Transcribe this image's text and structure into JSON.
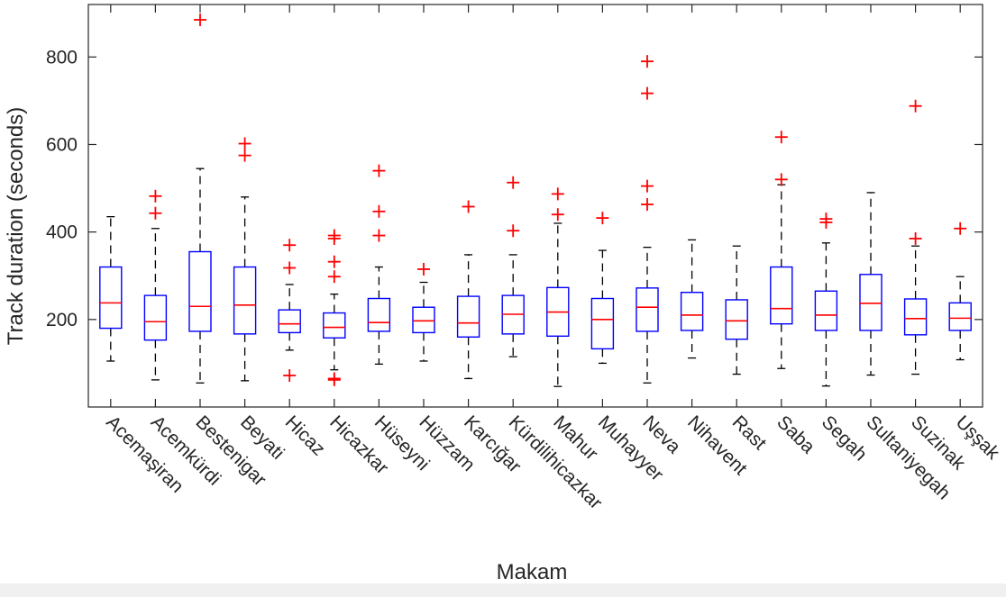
{
  "chart_data": {
    "type": "box",
    "xlabel": "Makam",
    "ylabel": "Track duration (seconds)",
    "ylim": [
      0,
      920
    ],
    "yticks": [
      200,
      400,
      600,
      800
    ],
    "categories": [
      "Acemaşiran",
      "Acemkürdi",
      "Bestenigar",
      "Beyati",
      "Hicaz",
      "Hicazkar",
      "Hüseyni",
      "Hüzzam",
      "Karcığar",
      "Kürdilihicazkar",
      "Mahur",
      "Muhayyer",
      "Neva",
      "Nihavent",
      "Rast",
      "Saba",
      "Segah",
      "Sultaniyegah",
      "Suzinak",
      "Uşşak"
    ],
    "boxes": [
      {
        "whisker_low": 105,
        "q1": 180,
        "median": 238,
        "q3": 320,
        "whisker_high": 435,
        "outliers": []
      },
      {
        "whisker_low": 62,
        "q1": 153,
        "median": 195,
        "q3": 255,
        "whisker_high": 408,
        "outliers": [
          443,
          482
        ]
      },
      {
        "whisker_low": 55,
        "q1": 173,
        "median": 230,
        "q3": 355,
        "whisker_high": 545,
        "outliers": [
          885
        ]
      },
      {
        "whisker_low": 60,
        "q1": 167,
        "median": 233,
        "q3": 320,
        "whisker_high": 480,
        "outliers": [
          575,
          602
        ]
      },
      {
        "whisker_low": 130,
        "q1": 170,
        "median": 190,
        "q3": 222,
        "whisker_high": 280,
        "outliers": [
          72,
          318,
          370
        ]
      },
      {
        "whisker_low": 85,
        "q1": 158,
        "median": 182,
        "q3": 215,
        "whisker_high": 258,
        "outliers": [
          62,
          65,
          298,
          332,
          385,
          392
        ]
      },
      {
        "whisker_low": 98,
        "q1": 173,
        "median": 193,
        "q3": 248,
        "whisker_high": 320,
        "outliers": [
          392,
          447,
          540
        ]
      },
      {
        "whisker_low": 105,
        "q1": 170,
        "median": 197,
        "q3": 228,
        "whisker_high": 285,
        "outliers": [
          315
        ]
      },
      {
        "whisker_low": 65,
        "q1": 160,
        "median": 192,
        "q3": 253,
        "whisker_high": 348,
        "outliers": [
          458
        ]
      },
      {
        "whisker_low": 115,
        "q1": 167,
        "median": 212,
        "q3": 255,
        "whisker_high": 348,
        "outliers": [
          403,
          513
        ]
      },
      {
        "whisker_low": 47,
        "q1": 162,
        "median": 217,
        "q3": 273,
        "whisker_high": 420,
        "outliers": [
          440,
          487
        ]
      },
      {
        "whisker_low": 100,
        "q1": 133,
        "median": 200,
        "q3": 248,
        "whisker_high": 358,
        "outliers": [
          432
        ]
      },
      {
        "whisker_low": 55,
        "q1": 173,
        "median": 228,
        "q3": 272,
        "whisker_high": 365,
        "outliers": [
          463,
          505,
          717,
          790
        ]
      },
      {
        "whisker_low": 112,
        "q1": 175,
        "median": 210,
        "q3": 262,
        "whisker_high": 382,
        "outliers": []
      },
      {
        "whisker_low": 75,
        "q1": 155,
        "median": 197,
        "q3": 245,
        "whisker_high": 368,
        "outliers": []
      },
      {
        "whisker_low": 88,
        "q1": 190,
        "median": 225,
        "q3": 320,
        "whisker_high": 508,
        "outliers": [
          520,
          617
        ]
      },
      {
        "whisker_low": 48,
        "q1": 175,
        "median": 210,
        "q3": 265,
        "whisker_high": 375,
        "outliers": [
          422,
          430
        ]
      },
      {
        "whisker_low": 73,
        "q1": 175,
        "median": 237,
        "q3": 303,
        "whisker_high": 490,
        "outliers": []
      },
      {
        "whisker_low": 75,
        "q1": 165,
        "median": 202,
        "q3": 247,
        "whisker_high": 368,
        "outliers": [
          385,
          688
        ]
      },
      {
        "whisker_low": 108,
        "q1": 175,
        "median": 203,
        "q3": 238,
        "whisker_high": 298,
        "outliers": [
          408
        ]
      }
    ],
    "colors": {
      "box": "#0000ff",
      "median": "#ff0000",
      "whisker": "#000000",
      "outlier": "#ff0000",
      "axis": "#262626",
      "figure_background": "#ffffff",
      "window_background": "#f0f0f0"
    },
    "grid": false,
    "legend": "none"
  }
}
